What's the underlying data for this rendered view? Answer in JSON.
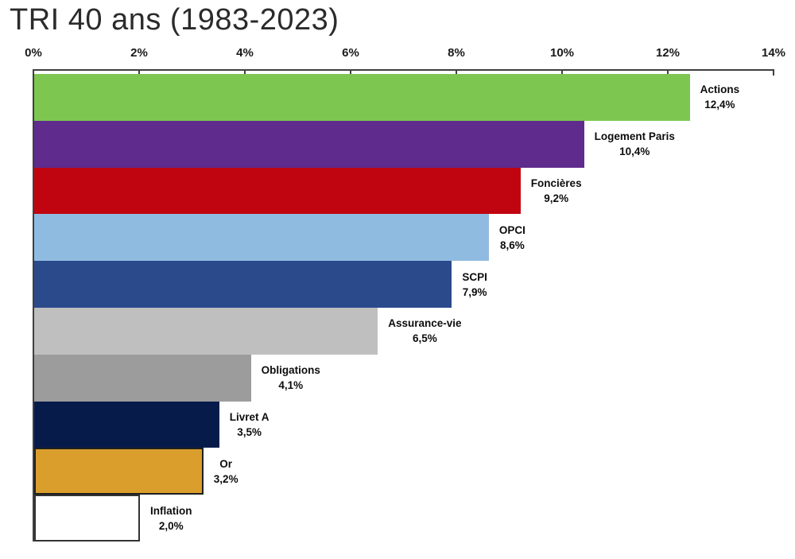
{
  "chart_data": {
    "type": "bar",
    "orientation": "horizontal",
    "title": "TRI 40 ans (1983-2023)",
    "xlabel": "",
    "ylabel": "",
    "xlim": [
      0,
      14
    ],
    "axis_position": "top",
    "grid": false,
    "legend": false,
    "x_ticks": [
      "0%",
      "2%",
      "4%",
      "6%",
      "8%",
      "10%",
      "12%",
      "14%"
    ],
    "x_tick_values": [
      0,
      2,
      4,
      6,
      8,
      10,
      12,
      14
    ],
    "categories": [
      "Actions",
      "Logement Paris",
      "Foncières",
      "OPCI",
      "SCPI",
      "Assurance-vie",
      "Obligations",
      "Livret A",
      "Or",
      "Inflation"
    ],
    "values": [
      12.4,
      10.4,
      9.2,
      8.6,
      7.9,
      6.5,
      4.1,
      3.5,
      3.2,
      2.0
    ],
    "value_labels": [
      "12,4%",
      "10,4%",
      "9,2%",
      "8,6%",
      "7,9%",
      "6,5%",
      "4,1%",
      "3,5%",
      "3,2%",
      "2,0%"
    ],
    "bar_colors": [
      "#7DC751",
      "#5F2B8D",
      "#C00511",
      "#90BBE0",
      "#2A4A8C",
      "#BFBFBF",
      "#9C9C9C",
      "#071B4B",
      "#D99E2C",
      "#FFFFFF"
    ],
    "bar_borders": [
      null,
      null,
      null,
      null,
      null,
      null,
      null,
      null,
      "#1f1f1f",
      "#333333"
    ]
  },
  "colors": {
    "axis": "#3f3f3f",
    "title_text": "#2b2b2b",
    "label_text": "#0d0d0d",
    "background": "#ffffff"
  }
}
